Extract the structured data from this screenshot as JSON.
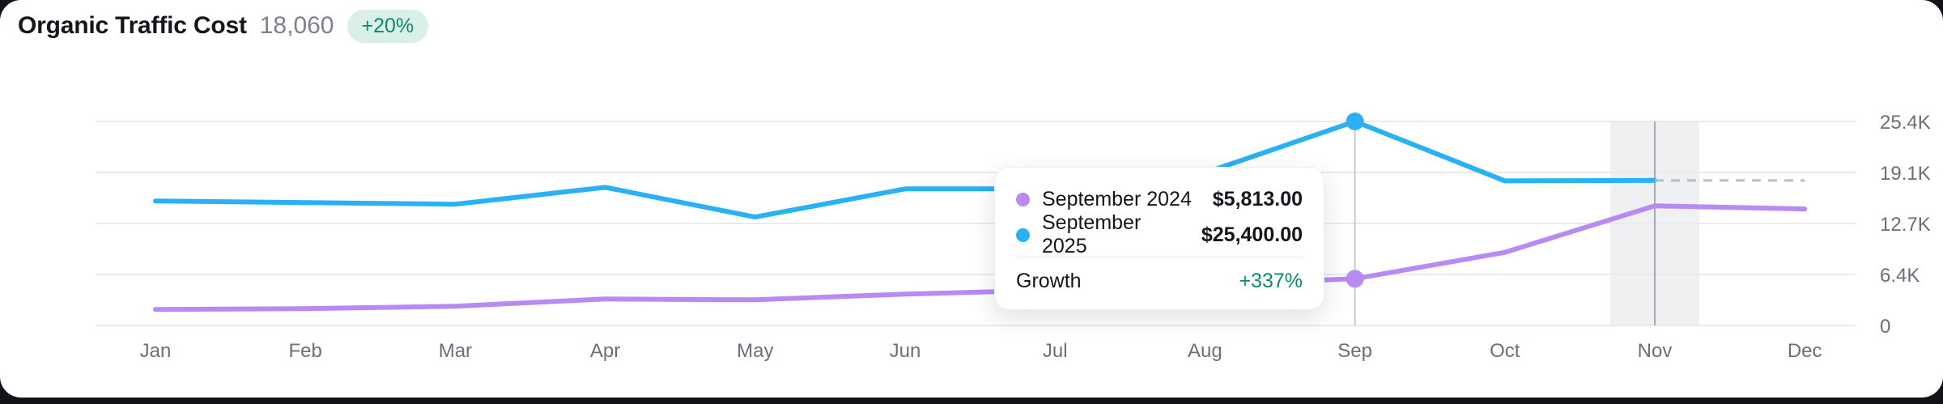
{
  "header": {
    "title": "Organic Traffic Cost",
    "value": "18,060",
    "badge": "+20%"
  },
  "colors": {
    "blue": "#2ab1f5",
    "purple": "#b78af4",
    "green": "#0e8a6d",
    "badge_bg": "#d9efe7",
    "grid": "#e9eaee",
    "axis_text": "#6b6e7c",
    "dashed": "#b7bcc5",
    "crosshair": "#c5c9d2",
    "highlight_line": "#a5a9b3",
    "highlight_band": "#eef0f2"
  },
  "tooltip": {
    "rows": [
      {
        "series": "September 2024",
        "value": "$5,813.00",
        "color": "#b78af4"
      },
      {
        "series": "September 2025",
        "value": "$25,400.00",
        "color": "#2ab1f5"
      }
    ],
    "growth_label": "Growth",
    "growth_value": "+337%"
  },
  "chart_data": {
    "type": "line",
    "title": "Organic Traffic Cost",
    "x": [
      "Jan",
      "Feb",
      "Mar",
      "Apr",
      "May",
      "Jun",
      "Jul",
      "Aug",
      "Sep",
      "Oct",
      "Nov",
      "Dec"
    ],
    "series": [
      {
        "name": "September 2024",
        "color": "#b78af4",
        "values": [
          2000,
          2100,
          2400,
          3300,
          3200,
          3900,
          4400,
          5100,
          5813,
          9100,
          14900,
          14500
        ]
      },
      {
        "name": "September 2025",
        "color": "#2ab1f5",
        "values": [
          15500,
          15300,
          15100,
          17200,
          13500,
          17000,
          17000,
          19000,
          25400,
          18000,
          18060,
          null
        ]
      }
    ],
    "projection": {
      "series": "September 2025",
      "start_index": 10,
      "end_index": 11,
      "value": 18060,
      "style": "dashed"
    },
    "hover_month": "Sep",
    "hover_values": {
      "September 2024": 5813,
      "September 2025": 25400
    },
    "highlight_month": "Nov",
    "yticks": [
      "0",
      "6.4K",
      "12.7K",
      "19.1K",
      "25.4K"
    ],
    "ylim": [
      0,
      25400
    ],
    "xlabel": "",
    "ylabel": "",
    "grid": true,
    "legend_position": "none",
    "y_axis_side": "right"
  }
}
